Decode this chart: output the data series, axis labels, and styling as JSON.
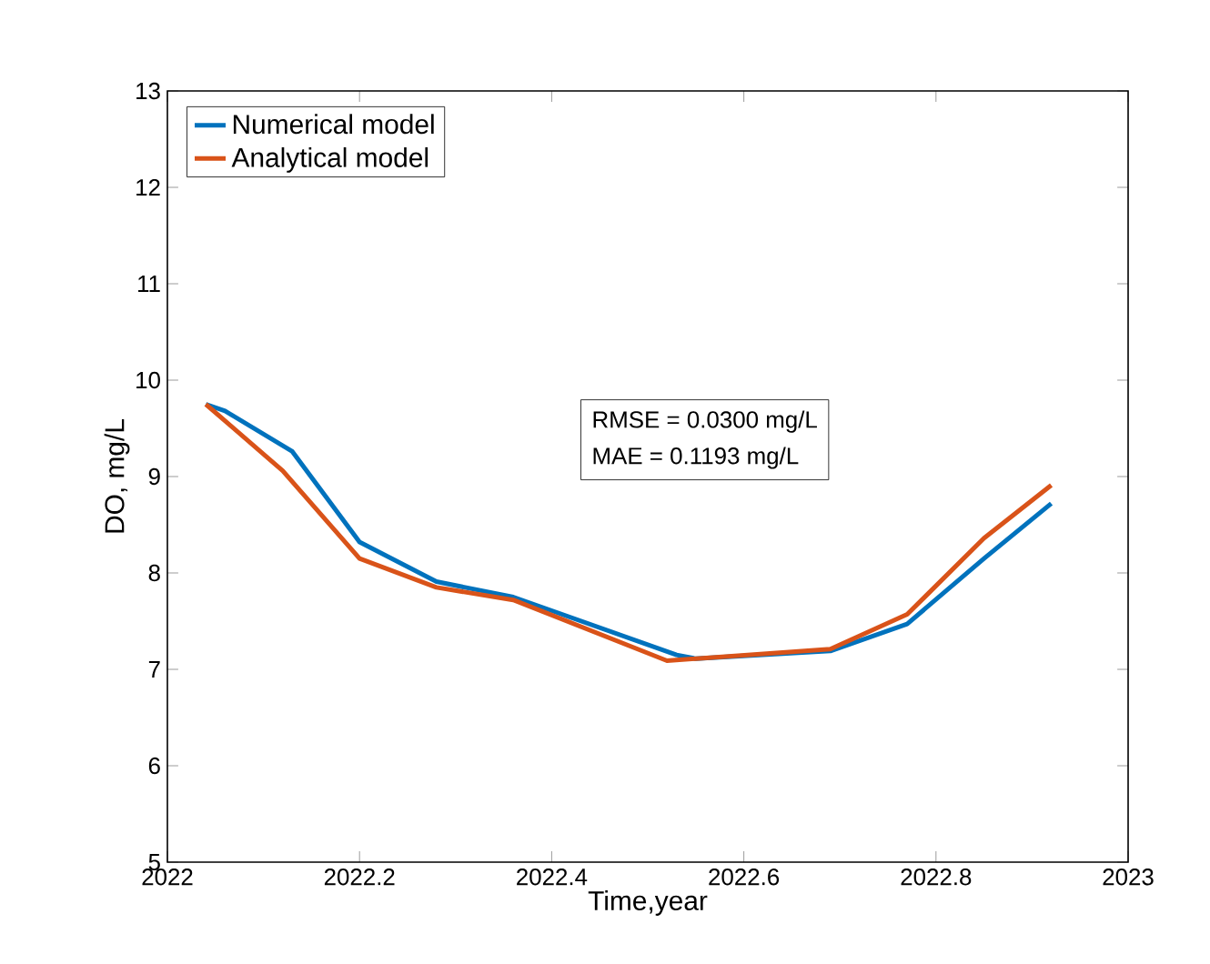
{
  "chart_data": {
    "type": "line",
    "xlabel": "Time,year",
    "ylabel": "DO, mg/L",
    "xlim": [
      2022,
      2023
    ],
    "ylim": [
      5,
      13
    ],
    "xticks": [
      2022,
      2022.2,
      2022.4,
      2022.6,
      2022.8,
      2023
    ],
    "yticks": [
      5,
      6,
      7,
      8,
      9,
      10,
      11,
      12,
      13
    ],
    "legend": "top left",
    "grid": false,
    "marker": "none",
    "line_style": "solid",
    "series": [
      {
        "name": "Numerical model",
        "color": "#0072bd",
        "x": [
          2022.04,
          2022.06,
          2022.13,
          2022.2,
          2022.28,
          2022.36,
          2022.53,
          2022.55,
          2022.69,
          2022.77,
          2022.85,
          2022.92
        ],
        "values": [
          9.75,
          9.68,
          9.26,
          8.32,
          7.91,
          7.75,
          7.15,
          7.11,
          7.19,
          7.47,
          8.15,
          8.72
        ]
      },
      {
        "name": "Analytical model",
        "color": "#d95319",
        "x": [
          2022.04,
          2022.12,
          2022.2,
          2022.28,
          2022.36,
          2022.52,
          2022.69,
          2022.77,
          2022.85,
          2022.92
        ],
        "values": [
          9.75,
          9.06,
          8.15,
          7.85,
          7.72,
          7.09,
          7.21,
          7.57,
          8.36,
          8.91
        ]
      }
    ],
    "annotations": [
      "RMSE = 0.0300 mg/L",
      "MAE = 0.1193 mg/L"
    ]
  }
}
